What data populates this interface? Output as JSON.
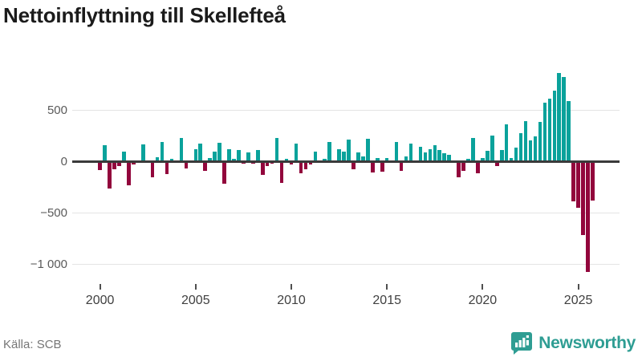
{
  "title": "Nettoinflyttning till Skellefteå",
  "source": "Källa: SCB",
  "brand": {
    "name": "Newsworthy",
    "color": "#2e9d93"
  },
  "colors": {
    "positive_bar": "#0aa29b",
    "negative_bar": "#92063c",
    "zero_line": "#3a3a3a",
    "grid_line": "#e4e4e4",
    "axis_text": "#5a5a5a",
    "title_text": "#1b1b1b"
  },
  "chart_data": {
    "type": "bar",
    "title": "Nettoinflyttning till Skellefteå",
    "xlabel": "",
    "ylabel": "",
    "x_interval": "quarter",
    "x_start_label": "2000 Q1",
    "x_end_label": "2025 Q4",
    "x_tick_years": [
      2000,
      2005,
      2010,
      2015,
      2020,
      2025
    ],
    "x_tick_labels": [
      "2000",
      "2005",
      "2010",
      "2015",
      "2020",
      "2025"
    ],
    "y_ticks": [
      500,
      0,
      -500,
      -1000
    ],
    "y_tick_labels": [
      "500",
      "0",
      "−500",
      "−1 000"
    ],
    "ylim": [
      -1150,
      900
    ],
    "grid": "horizontal",
    "legend": "none",
    "series": [
      {
        "name": "Nettoinflyttning",
        "values": [
          -85,
          155,
          -265,
          -80,
          -50,
          90,
          -235,
          -35,
          5,
          165,
          -10,
          -155,
          40,
          185,
          -125,
          25,
          5,
          225,
          -70,
          5,
          120,
          170,
          -90,
          35,
          95,
          180,
          -215,
          120,
          25,
          110,
          -25,
          85,
          -20,
          110,
          -130,
          -45,
          -25,
          225,
          -210,
          20,
          -35,
          175,
          -115,
          -75,
          -35,
          95,
          5,
          20,
          190,
          5,
          115,
          95,
          210,
          -75,
          85,
          45,
          220,
          -110,
          30,
          -105,
          30,
          5,
          185,
          -95,
          45,
          170,
          5,
          140,
          85,
          120,
          155,
          110,
          75,
          60,
          5,
          -155,
          -95,
          20,
          225,
          -120,
          30,
          100,
          250,
          -50,
          110,
          360,
          30,
          130,
          270,
          390,
          205,
          245,
          380,
          570,
          610,
          685,
          860,
          820,
          585,
          -390,
          -450,
          -720,
          -1080,
          -380
        ]
      }
    ]
  }
}
